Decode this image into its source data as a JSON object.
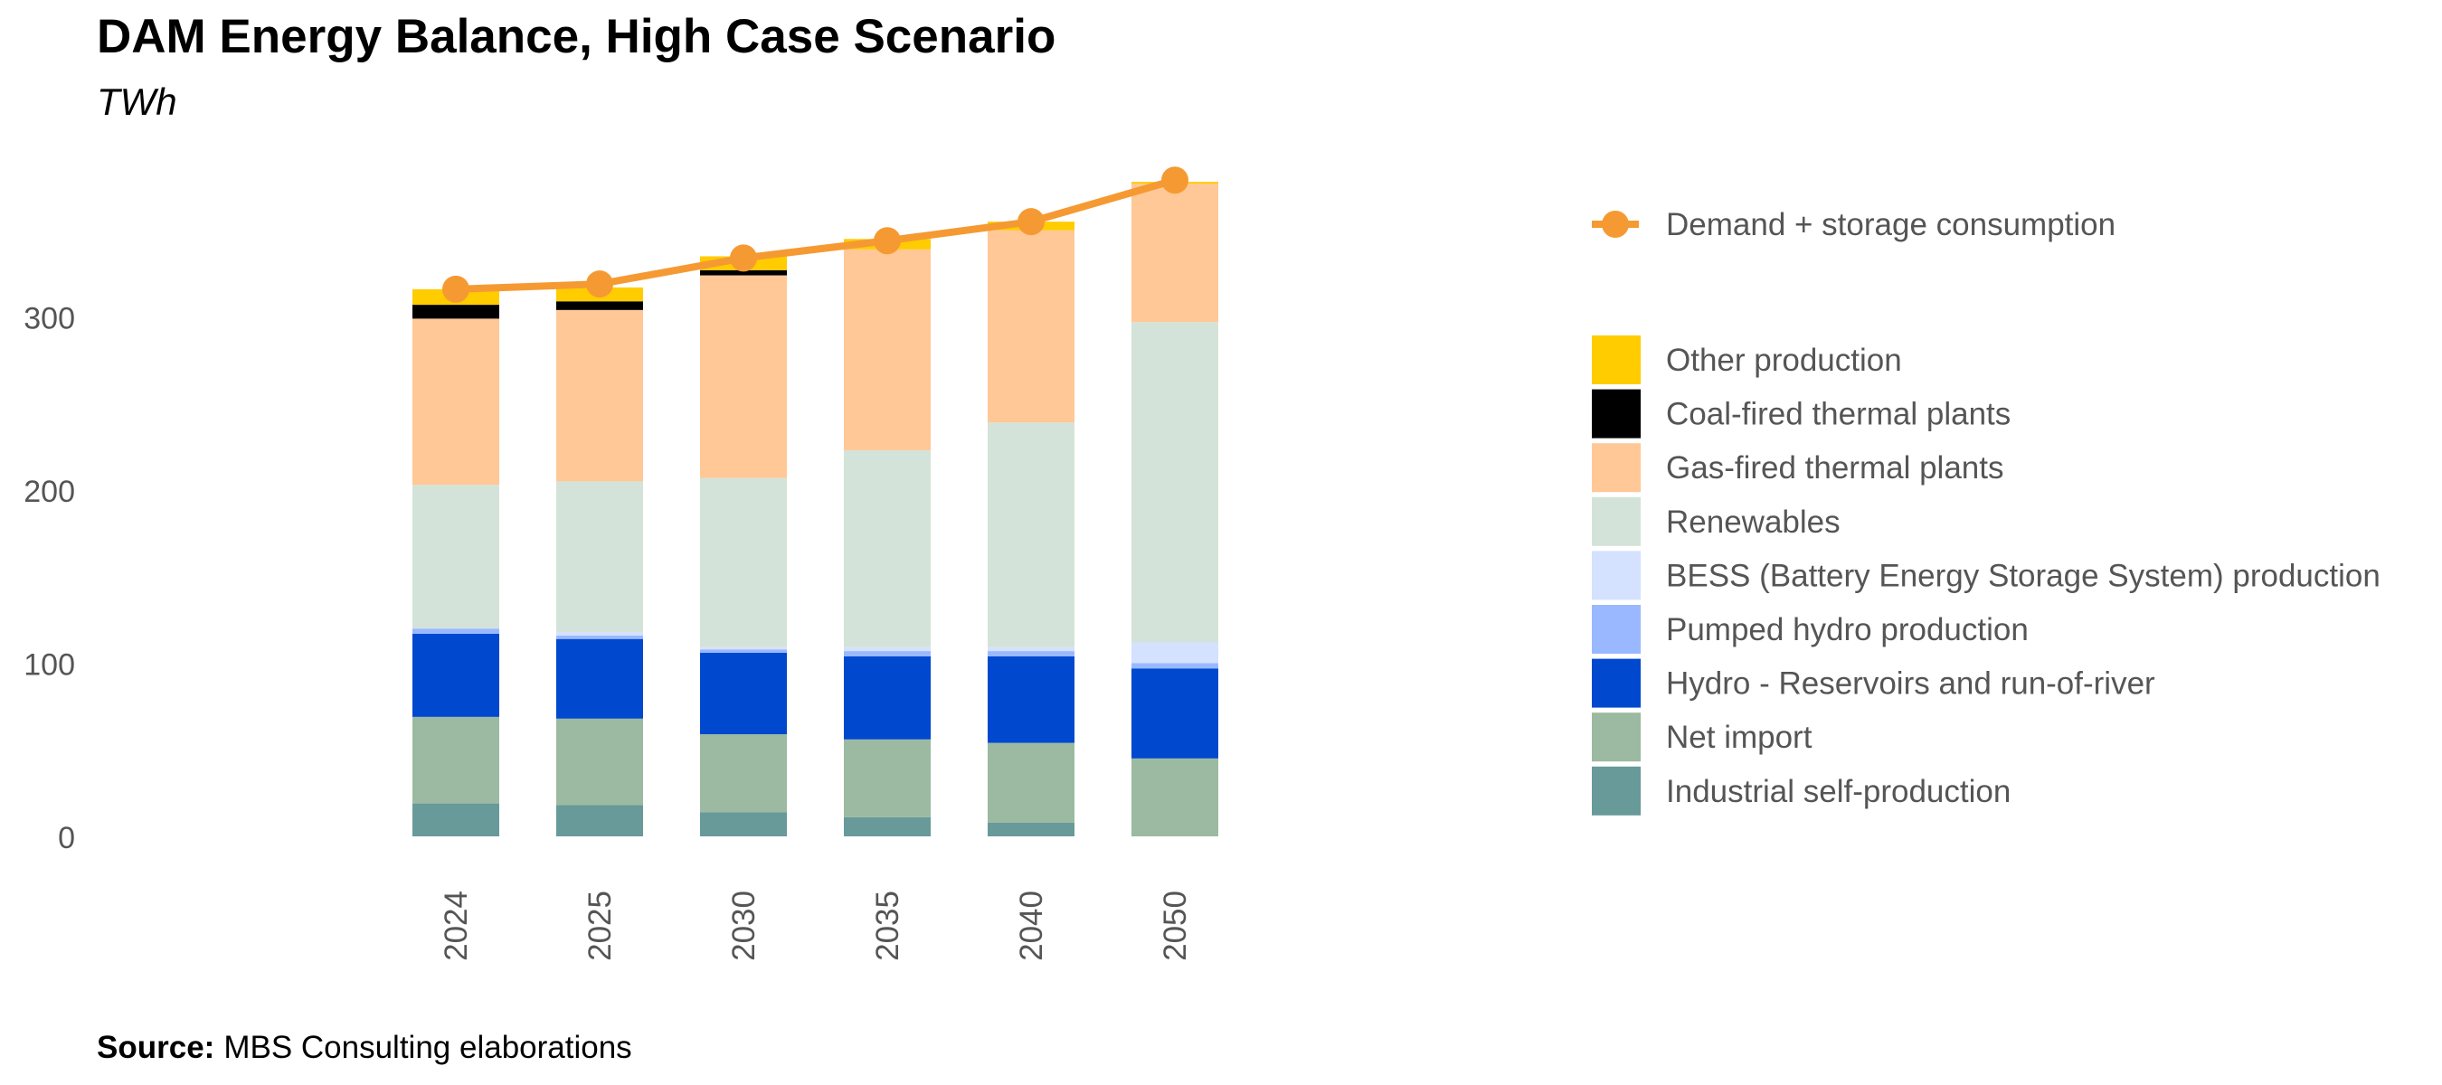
{
  "chart_data": {
    "type": "bar",
    "title": "DAM Energy Balance, High Case Scenario",
    "subtitle": "TWh",
    "xlabel": "",
    "ylabel": "",
    "ylim": [
      0,
      380
    ],
    "yticks": [
      0,
      100,
      200,
      300
    ],
    "grid": false,
    "legend_placement": "right",
    "categories": [
      "2024",
      "2025",
      "2030",
      "2035",
      "2040",
      "2050"
    ],
    "series": [
      {
        "name": "Industrial self-production",
        "color": "#679A98",
        "values": [
          19,
          18,
          14,
          11,
          8,
          0
        ]
      },
      {
        "name": "Net import",
        "color": "#9BBAA1",
        "values": [
          50,
          50,
          45,
          45,
          46,
          45
        ]
      },
      {
        "name": "Hydro - Reservoirs and run-of-river",
        "color": "#0048CE",
        "values": [
          48,
          46,
          47,
          48,
          50,
          52
        ]
      },
      {
        "name": "Pumped hydro production",
        "color": "#99B8FF",
        "values": [
          3,
          2,
          2,
          3,
          3,
          3
        ]
      },
      {
        "name": "BESS (Battery Energy Storage System) production",
        "color": "#D4E1FF",
        "values": [
          0,
          2,
          1,
          2,
          2,
          12
        ]
      },
      {
        "name": "Renewables",
        "color": "#D4E3D9",
        "values": [
          83,
          87,
          98,
          114,
          130,
          185
        ]
      },
      {
        "name": "Gas-fired thermal plants",
        "color": "#FFC896",
        "values": [
          96,
          99,
          117,
          116,
          111,
          80
        ]
      },
      {
        "name": "Coal-fired thermal plants",
        "color": "#000000",
        "values": [
          8,
          5,
          3,
          0,
          0,
          0
        ]
      },
      {
        "name": "Other production",
        "color": "#FFCC00",
        "values": [
          9,
          8,
          8,
          6,
          5,
          1
        ]
      }
    ],
    "line_series": {
      "name": "Demand + storage consumption",
      "color": "#F59A32",
      "values": [
        316,
        319,
        334,
        344,
        355,
        379
      ]
    },
    "source_label": "Source:",
    "source_text": "MBS Consulting elaborations"
  }
}
